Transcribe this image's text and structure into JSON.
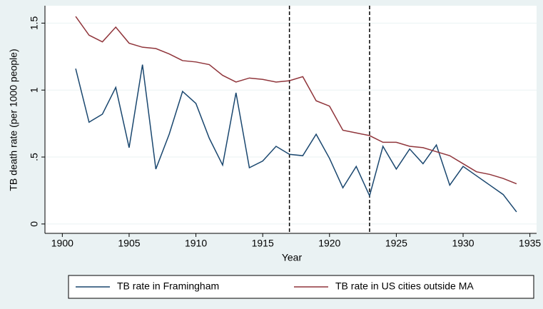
{
  "chart_data": {
    "type": "line",
    "x_label": "Year",
    "y_label": "TB death rate (per 1000 people)",
    "x": [
      1901,
      1902,
      1903,
      1904,
      1905,
      1906,
      1907,
      1908,
      1909,
      1910,
      1911,
      1912,
      1913,
      1914,
      1915,
      1916,
      1917,
      1918,
      1919,
      1920,
      1921,
      1922,
      1923,
      1924,
      1925,
      1926,
      1927,
      1928,
      1929,
      1930,
      1931,
      1932,
      1933,
      1934
    ],
    "series": [
      {
        "name": "TB rate in Framingham",
        "color": "#1a476f",
        "values": [
          1.16,
          0.76,
          0.82,
          1.02,
          0.57,
          1.19,
          0.41,
          0.67,
          0.99,
          0.9,
          0.64,
          0.44,
          0.98,
          0.42,
          0.47,
          0.58,
          0.52,
          0.51,
          0.67,
          0.49,
          0.27,
          0.43,
          0.21,
          0.58,
          0.41,
          0.56,
          0.45,
          0.59,
          0.29,
          0.43,
          0.36,
          0.29,
          0.22,
          0.09
        ]
      },
      {
        "name": "TB rate in US cities outside MA",
        "color": "#90353b",
        "values": [
          1.55,
          1.41,
          1.36,
          1.47,
          1.35,
          1.32,
          1.31,
          1.27,
          1.22,
          1.21,
          1.19,
          1.11,
          1.06,
          1.09,
          1.08,
          1.06,
          1.07,
          1.1,
          0.92,
          0.88,
          0.7,
          0.68,
          0.66,
          0.61,
          0.61,
          0.58,
          0.57,
          0.54,
          0.51,
          0.45,
          0.39,
          0.37,
          0.34,
          0.3
        ]
      }
    ],
    "xlim": [
      1898.7,
      1935.5
    ],
    "xticks": [
      1900,
      1905,
      1910,
      1915,
      1920,
      1925,
      1930,
      1935
    ],
    "ylim": [
      -0.07,
      1.63
    ],
    "yticks": [
      0,
      {
        "value": 0.5,
        "label": ".5"
      },
      1,
      1.5
    ],
    "vlines": [
      1917,
      1923
    ],
    "grid": true,
    "legend": "bottom"
  }
}
